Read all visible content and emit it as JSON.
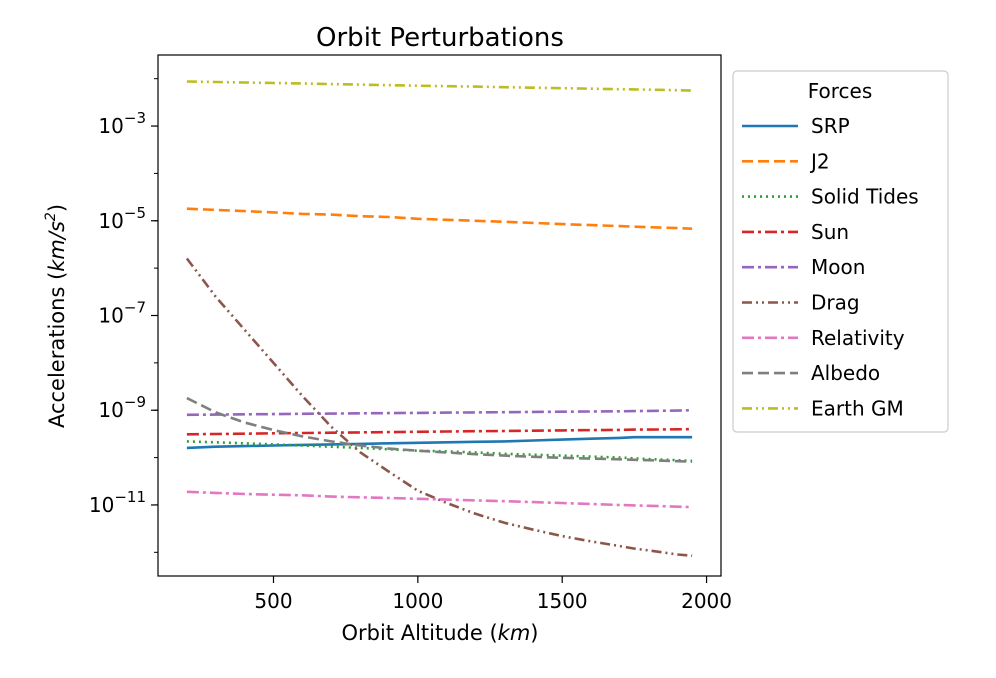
{
  "chart_data": {
    "type": "line",
    "title": "Orbit Perturbations",
    "xlabel": "Orbit Altitude",
    "xlabel_unit": "km",
    "ylabel": "Accelerations",
    "ylabel_unit": "km/s",
    "ylabel_unit_exp": "2",
    "yscale": "log",
    "xlim": [
      100,
      2050
    ],
    "ylim_log10": [
      -12.5,
      -1.5
    ],
    "x_ticks": [
      500,
      1000,
      1500,
      2000
    ],
    "x_tick_labels": [
      "500",
      "1000",
      "1500",
      "2000"
    ],
    "y_ticks_log10": [
      -11,
      -9,
      -7,
      -5,
      -3
    ],
    "y_tick_base": "10",
    "y_tick_exponents": [
      "−11",
      "−9",
      "−7",
      "−5",
      "−3"
    ],
    "legend": {
      "title": "Forces",
      "placement": "outside-right-top"
    },
    "x": [
      200,
      300,
      400,
      500,
      600,
      700,
      800,
      900,
      1000,
      1100,
      1200,
      1300,
      1400,
      1500,
      1600,
      1700,
      1750,
      1800,
      1900,
      1950
    ],
    "series": [
      {
        "name": "SRP",
        "color": "#1f77b4",
        "dash": "solid",
        "values": [
          1.6e-10,
          1.7e-10,
          1.75e-10,
          1.8e-10,
          1.85e-10,
          1.9e-10,
          1.95e-10,
          2e-10,
          2.05e-10,
          2.1e-10,
          2.15e-10,
          2.2e-10,
          2.3e-10,
          2.4e-10,
          2.5e-10,
          2.6e-10,
          2.7e-10,
          2.7e-10,
          2.7e-10,
          2.7e-10
        ]
      },
      {
        "name": "J2",
        "color": "#ff7f0e",
        "dash": "dashed",
        "values": [
          1.8e-05,
          1.7e-05,
          1.6e-05,
          1.5e-05,
          1.4e-05,
          1.35e-05,
          1.25e-05,
          1.2e-05,
          1.1e-05,
          1.05e-05,
          1e-05,
          9.5e-06,
          9e-06,
          8.5e-06,
          8.1e-06,
          7.7e-06,
          7.5e-06,
          7.3e-06,
          7e-06,
          6.8e-06
        ]
      },
      {
        "name": "Solid Tides",
        "color": "#2ca02c",
        "dash": "dotted",
        "values": [
          2.2e-10,
          2.1e-10,
          2e-10,
          1.9e-10,
          1.8e-10,
          1.7e-10,
          1.6e-10,
          1.5e-10,
          1.4e-10,
          1.35e-10,
          1.28e-10,
          1.2e-10,
          1.15e-10,
          1.1e-10,
          1.05e-10,
          1e-10,
          9.6e-11,
          9.3e-11,
          8.8e-11,
          8.5e-11
        ]
      },
      {
        "name": "Sun",
        "color": "#d62728",
        "dash": "dashdot",
        "values": [
          3.1e-10,
          3.15e-10,
          3.2e-10,
          3.25e-10,
          3.3e-10,
          3.35e-10,
          3.4e-10,
          3.45e-10,
          3.5e-10,
          3.55e-10,
          3.6e-10,
          3.65e-10,
          3.7e-10,
          3.75e-10,
          3.8e-10,
          3.85e-10,
          3.9e-10,
          3.9e-10,
          3.95e-10,
          4e-10
        ]
      },
      {
        "name": "Moon",
        "color": "#9467bd",
        "dash": "dashdot",
        "values": [
          8e-10,
          8.1e-10,
          8.2e-10,
          8.3e-10,
          8.4e-10,
          8.5e-10,
          8.6e-10,
          8.7e-10,
          8.8e-10,
          8.9e-10,
          9e-10,
          9.1e-10,
          9.2e-10,
          9.3e-10,
          9.4e-10,
          9.5e-10,
          9.6e-10,
          9.7e-10,
          9.8e-10,
          1e-09
        ]
      },
      {
        "name": "Drag",
        "color": "#8c564b",
        "dash": "dashdotdot",
        "values": [
          1.6e-06,
          2.5e-07,
          5e-08,
          1e-08,
          2e-09,
          4.5e-10,
          1.3e-10,
          5e-11,
          2e-11,
          1.1e-11,
          6.5e-12,
          4.2e-12,
          3e-12,
          2.2e-12,
          1.7e-12,
          1.35e-12,
          1.2e-12,
          1.1e-12,
          9e-13,
          8.5e-13
        ]
      },
      {
        "name": "Relativity",
        "color": "#e377c2",
        "dash": "dashdot",
        "values": [
          1.9e-11,
          1.8e-11,
          1.7e-11,
          1.65e-11,
          1.6e-11,
          1.5e-11,
          1.45e-11,
          1.4e-11,
          1.35e-11,
          1.3e-11,
          1.25e-11,
          1.2e-11,
          1.15e-11,
          1.1e-11,
          1.05e-11,
          1e-11,
          9.8e-12,
          9.6e-12,
          9.2e-12,
          9e-12
        ]
      },
      {
        "name": "Albedo",
        "color": "#7f7f7f",
        "dash": "dashed",
        "values": [
          1.8e-09,
          9e-10,
          5.5e-10,
          3.8e-10,
          2.8e-10,
          2.2e-10,
          1.8e-10,
          1.55e-10,
          1.4e-10,
          1.28e-10,
          1.18e-10,
          1.1e-10,
          1.04e-10,
          9.9e-11,
          9.5e-11,
          9.2e-11,
          9e-11,
          8.8e-11,
          8.4e-11,
          8.2e-11
        ]
      },
      {
        "name": "Earth GM",
        "color": "#bcbd22",
        "dash": "dashdotdot",
        "values": [
          0.0087,
          0.0085,
          0.0083,
          0.0081,
          0.0079,
          0.0077,
          0.0075,
          0.0073,
          0.0071,
          0.00695,
          0.0068,
          0.0066,
          0.00645,
          0.0063,
          0.00615,
          0.006,
          0.00595,
          0.00585,
          0.0057,
          0.0056
        ]
      }
    ]
  }
}
